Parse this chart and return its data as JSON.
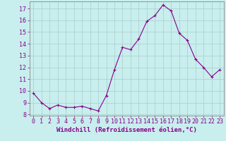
{
  "x": [
    0,
    1,
    2,
    3,
    4,
    5,
    6,
    7,
    8,
    9,
    10,
    11,
    12,
    13,
    14,
    15,
    16,
    17,
    18,
    19,
    20,
    21,
    22,
    23
  ],
  "y": [
    9.8,
    9.0,
    8.5,
    8.8,
    8.6,
    8.6,
    8.7,
    8.5,
    8.3,
    9.6,
    11.8,
    13.7,
    13.5,
    14.4,
    15.9,
    16.4,
    17.3,
    16.8,
    14.9,
    14.3,
    12.7,
    12.0,
    11.2,
    11.8
  ],
  "line_color": "#880088",
  "marker": "+",
  "bg_color": "#c8eeee",
  "grid_color": "#aacccc",
  "xlabel": "Windchill (Refroidissement éolien,°C)",
  "ylim_min": 7.9,
  "ylim_max": 17.6,
  "xlim_min": -0.5,
  "xlim_max": 23.5,
  "yticks": [
    8,
    9,
    10,
    11,
    12,
    13,
    14,
    15,
    16,
    17
  ],
  "xticks": [
    0,
    1,
    2,
    3,
    4,
    5,
    6,
    7,
    8,
    9,
    10,
    11,
    12,
    13,
    14,
    15,
    16,
    17,
    18,
    19,
    20,
    21,
    22,
    23
  ],
  "tick_color": "#880088",
  "label_color": "#880088",
  "axis_color": "#888888",
  "font_size": 6,
  "xlabel_fontsize": 6.5,
  "line_width": 0.8,
  "marker_size": 3,
  "marker_edge_width": 0.8
}
